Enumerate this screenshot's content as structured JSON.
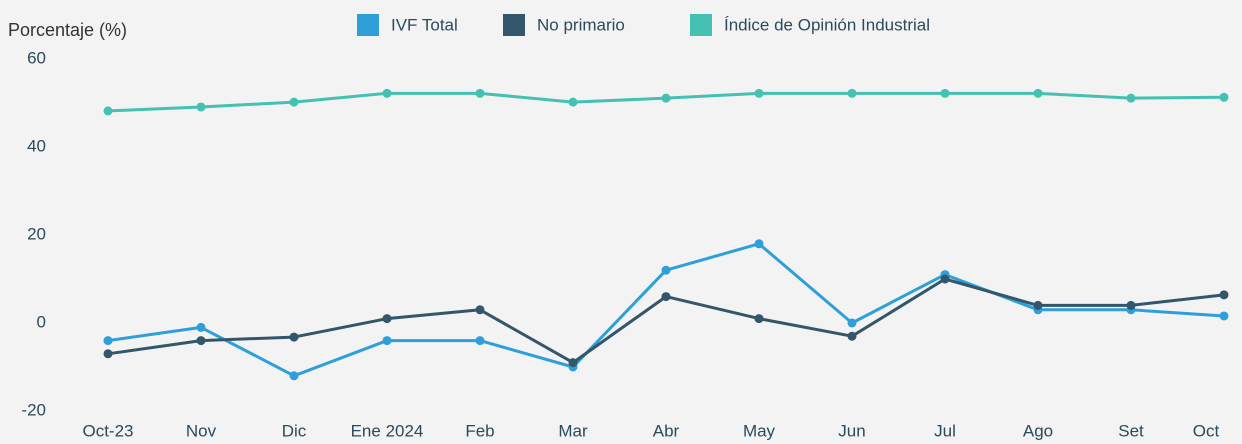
{
  "chart_data": {
    "type": "line",
    "y_axis_label": "Porcentaje (%)",
    "categories": [
      "Oct-23",
      "Nov",
      "Dic",
      "Ene 2024",
      "Feb",
      "Mar",
      "Abr",
      "May",
      "Jun",
      "Jul",
      "Ago",
      "Set",
      "Oct"
    ],
    "series": [
      {
        "name": "IVF Total",
        "color": "#2e9fd8",
        "values": [
          -4,
          -1,
          -12,
          -4,
          -4,
          -10,
          12,
          18,
          0,
          11,
          3,
          3,
          1.6
        ]
      },
      {
        "name": "No primario",
        "color": "#34566a",
        "values": [
          -7,
          -4,
          -3.2,
          1,
          3,
          -9,
          6,
          1,
          -3,
          10,
          4,
          4,
          6.4
        ]
      },
      {
        "name": "Índice de Opinión Industrial",
        "color": "#44c1b3",
        "values": [
          48.2,
          49.1,
          50.2,
          52.2,
          52.2,
          50.2,
          51.1,
          52.2,
          52.2,
          52.2,
          52.2,
          51.1,
          51.3
        ]
      }
    ],
    "ylim": [
      -20,
      60
    ],
    "yticks": [
      -20,
      0,
      20,
      40,
      60
    ],
    "grid": false,
    "legend": "top"
  }
}
